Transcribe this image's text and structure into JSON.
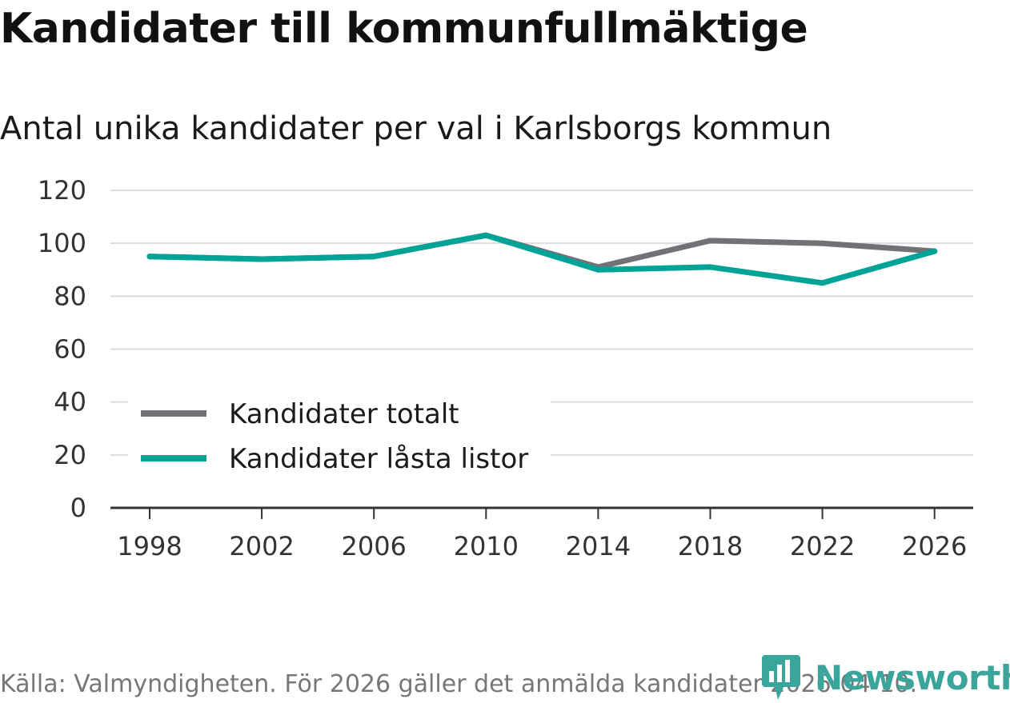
{
  "title": "Kandidater till kommunfullmäktige",
  "subtitle": "Antal unika kandidater per val i Karlsborgs kommun",
  "footer": "Källa: Valmyndigheten. För 2026 gäller det anmälda kandidater 2026-04-10.",
  "brand": "Newsworthy",
  "colors": {
    "total": "#737178",
    "locked": "#00a398",
    "grid": "#dddddd",
    "axis": "#333333",
    "brand": "#3aa59a"
  },
  "chart_data": {
    "type": "line",
    "title": "Kandidater till kommunfullmäktige",
    "subtitle": "Antal unika kandidater per val i Karlsborgs kommun",
    "xlabel": "",
    "ylabel": "",
    "categories": [
      "1998",
      "2002",
      "2006",
      "2010",
      "2014",
      "2018",
      "2022",
      "2026"
    ],
    "yticks": [
      0,
      20,
      40,
      60,
      80,
      100,
      120
    ],
    "ylim": [
      0,
      120
    ],
    "grid": true,
    "legend_position": "bottom-left",
    "series": [
      {
        "name": "Kandidater totalt",
        "color": "#737178",
        "values": [
          95,
          94,
          95,
          103,
          91,
          101,
          100,
          97
        ]
      },
      {
        "name": "Kandidater låsta listor",
        "color": "#00a398",
        "values": [
          95,
          94,
          95,
          103,
          90,
          91,
          85,
          97
        ]
      }
    ]
  }
}
